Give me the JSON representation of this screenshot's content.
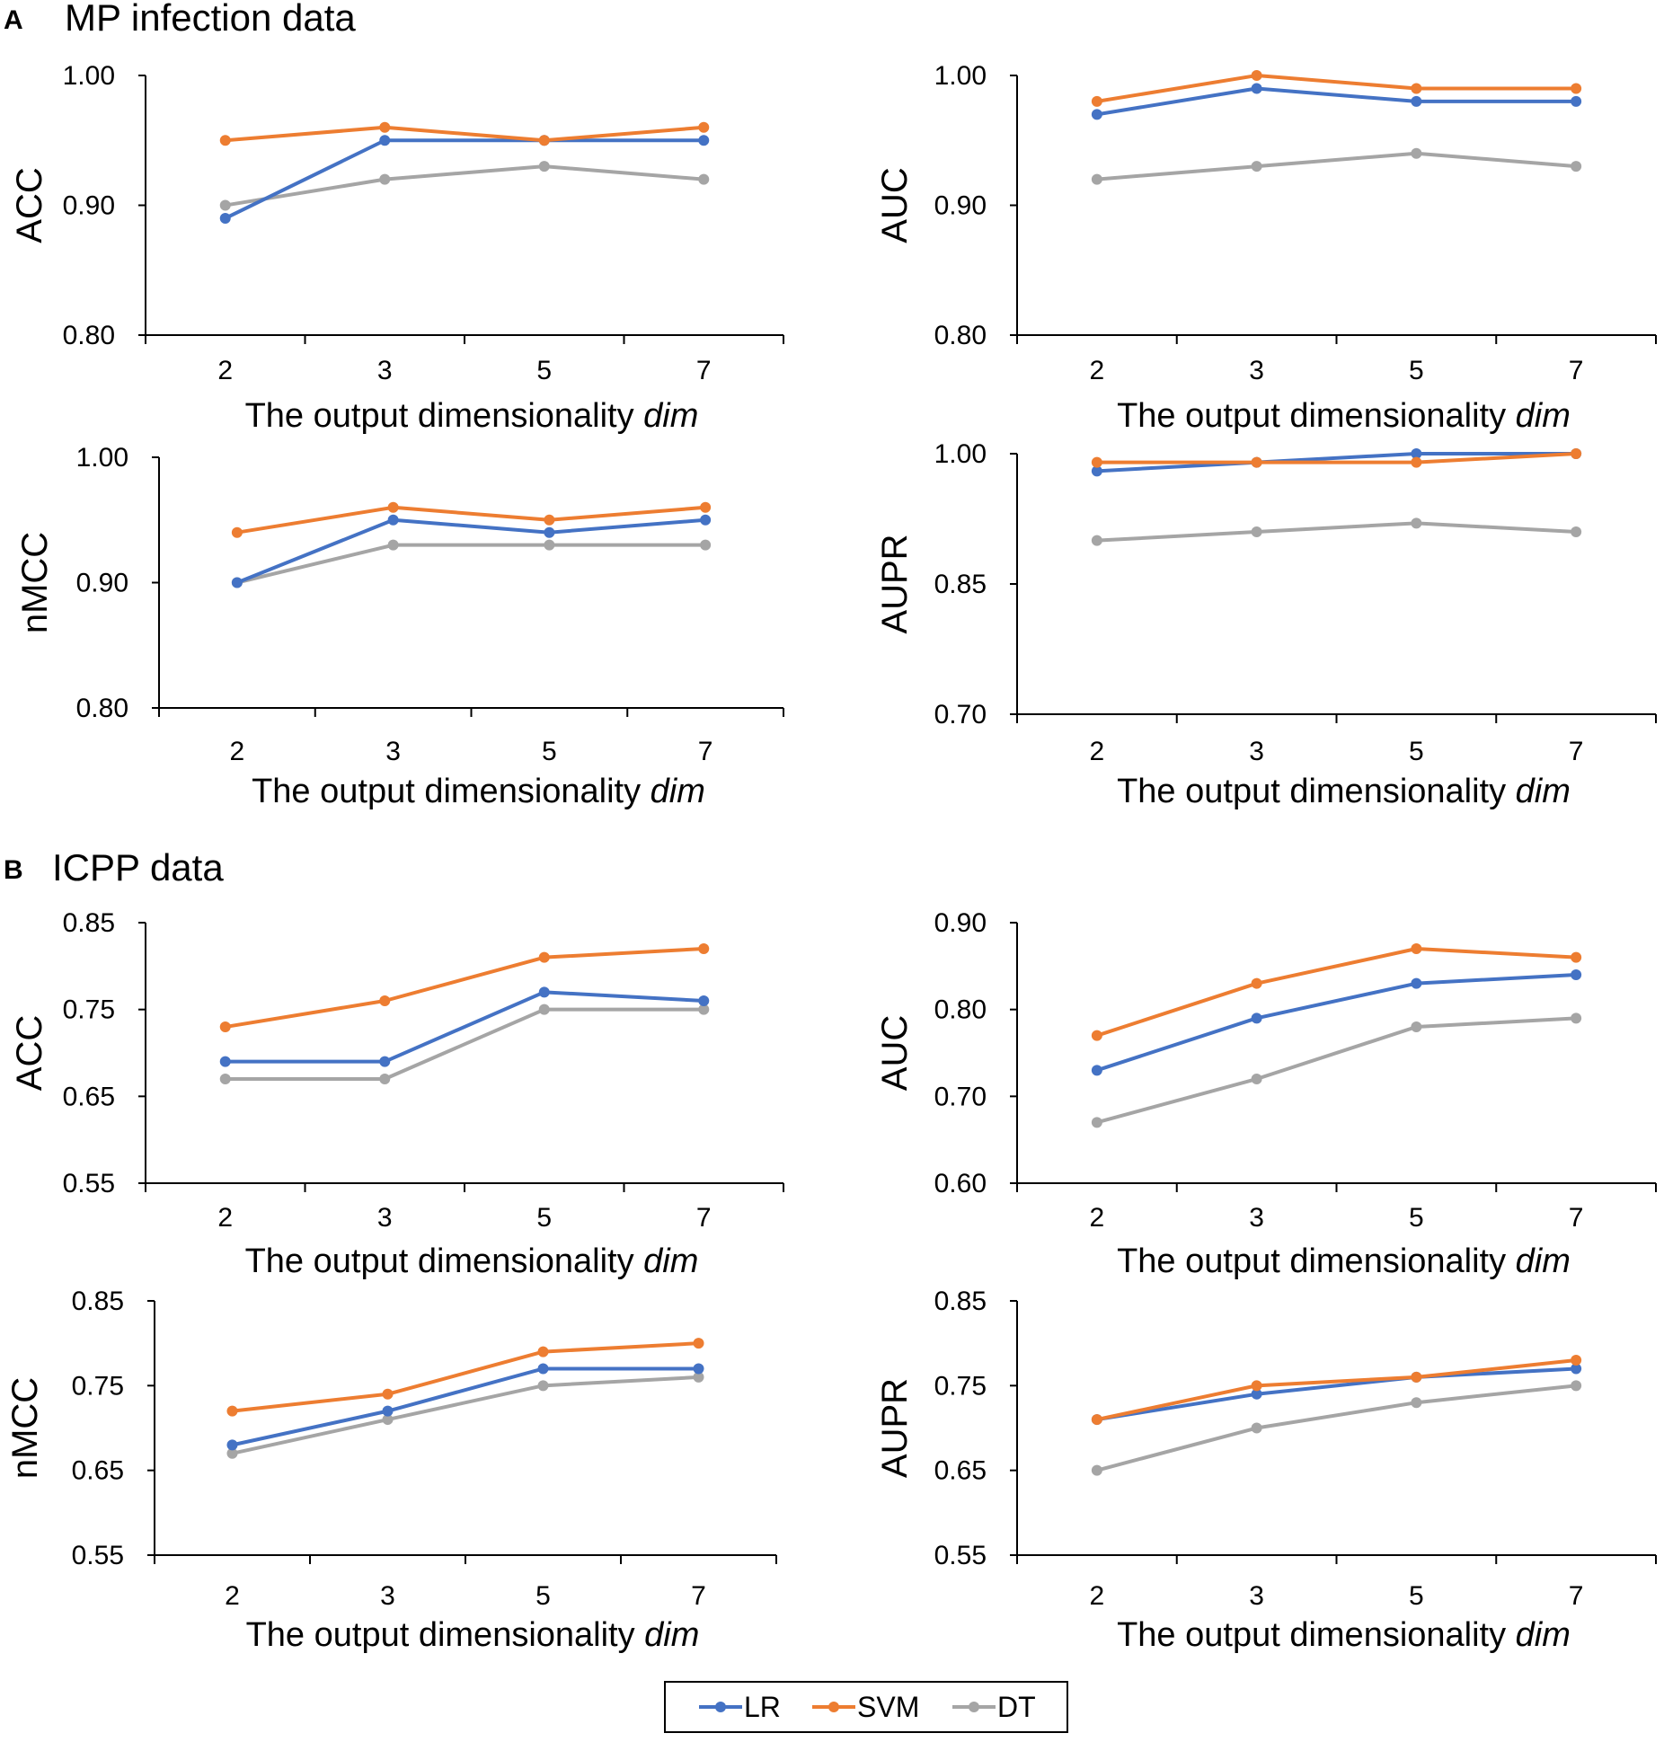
{
  "panels": [
    {
      "letter": "A",
      "title": "MP infection data"
    },
    {
      "letter": "B",
      "title": "ICPP data"
    }
  ],
  "colors": {
    "LR": "#4472C4",
    "SVM": "#ED7D31",
    "DT": "#A5A5A5",
    "axis": "#000000"
  },
  "legend": {
    "items": [
      "LR",
      "SVM",
      "DT"
    ]
  },
  "chart_data": [
    {
      "type": "line",
      "ylabel": "ACC",
      "xlabel": "The output dimensionality ",
      "xlabel_italic": "dim",
      "categories": [
        "2",
        "3",
        "5",
        "7"
      ],
      "ylim": [
        0.8,
        1.0
      ],
      "yticks": [
        "0.80",
        "0.90",
        "1.00"
      ],
      "series": [
        {
          "name": "LR",
          "values": [
            0.89,
            0.95,
            0.95,
            0.95
          ]
        },
        {
          "name": "SVM",
          "values": [
            0.95,
            0.96,
            0.95,
            0.96
          ]
        },
        {
          "name": "DT",
          "values": [
            0.9,
            0.92,
            0.93,
            0.92
          ]
        }
      ]
    },
    {
      "type": "line",
      "ylabel": "AUC",
      "xlabel": "The output dimensionality ",
      "xlabel_italic": "dim",
      "categories": [
        "2",
        "3",
        "5",
        "7"
      ],
      "ylim": [
        0.8,
        1.0
      ],
      "yticks": [
        "0.80",
        "0.90",
        "1.00"
      ],
      "series": [
        {
          "name": "LR",
          "values": [
            0.97,
            0.99,
            0.98,
            0.98
          ]
        },
        {
          "name": "SVM",
          "values": [
            0.98,
            1.0,
            0.99,
            0.99
          ]
        },
        {
          "name": "DT",
          "values": [
            0.92,
            0.93,
            0.94,
            0.93
          ]
        }
      ]
    },
    {
      "type": "line",
      "ylabel": "nMCC",
      "xlabel": "The output dimensionality ",
      "xlabel_italic": "dim",
      "categories": [
        "2",
        "3",
        "5",
        "7"
      ],
      "ylim": [
        0.8,
        1.0
      ],
      "yticks": [
        "0.80",
        "0.90",
        "1.00"
      ],
      "series": [
        {
          "name": "LR",
          "values": [
            0.9,
            0.95,
            0.94,
            0.95
          ]
        },
        {
          "name": "SVM",
          "values": [
            0.94,
            0.96,
            0.95,
            0.96
          ]
        },
        {
          "name": "DT",
          "values": [
            0.9,
            0.93,
            0.93,
            0.93
          ]
        }
      ]
    },
    {
      "type": "line",
      "ylabel": "AUPR",
      "xlabel": "The output dimensionality ",
      "xlabel_italic": "dim",
      "categories": [
        "2",
        "3",
        "5",
        "7"
      ],
      "ylim": [
        0.7,
        1.0
      ],
      "yticks": [
        "0.70",
        "0.85",
        "1.00"
      ],
      "series": [
        {
          "name": "LR",
          "values": [
            0.98,
            0.99,
            1.0,
            1.0
          ]
        },
        {
          "name": "SVM",
          "values": [
            0.99,
            0.99,
            0.99,
            1.0
          ]
        },
        {
          "name": "DT",
          "values": [
            0.9,
            0.91,
            0.92,
            0.91
          ]
        }
      ]
    },
    {
      "type": "line",
      "ylabel": "ACC",
      "xlabel": "The output dimensionality ",
      "xlabel_italic": "dim",
      "categories": [
        "2",
        "3",
        "5",
        "7"
      ],
      "ylim": [
        0.55,
        0.85
      ],
      "yticks": [
        "0.55",
        "0.65",
        "0.75",
        "0.85"
      ],
      "series": [
        {
          "name": "LR",
          "values": [
            0.69,
            0.69,
            0.77,
            0.76
          ]
        },
        {
          "name": "SVM",
          "values": [
            0.73,
            0.76,
            0.81,
            0.82
          ]
        },
        {
          "name": "DT",
          "values": [
            0.67,
            0.67,
            0.75,
            0.75
          ]
        }
      ]
    },
    {
      "type": "line",
      "ylabel": "AUC",
      "xlabel": "The output dimensionality ",
      "xlabel_italic": "dim",
      "categories": [
        "2",
        "3",
        "5",
        "7"
      ],
      "ylim": [
        0.6,
        0.9
      ],
      "yticks": [
        "0.60",
        "0.70",
        "0.80",
        "0.90"
      ],
      "series": [
        {
          "name": "LR",
          "values": [
            0.73,
            0.79,
            0.83,
            0.84
          ]
        },
        {
          "name": "SVM",
          "values": [
            0.77,
            0.83,
            0.87,
            0.86
          ]
        },
        {
          "name": "DT",
          "values": [
            0.67,
            0.72,
            0.78,
            0.79
          ]
        }
      ]
    },
    {
      "type": "line",
      "ylabel": "nMCC",
      "xlabel": "The output dimensionality ",
      "xlabel_italic": "dim",
      "categories": [
        "2",
        "3",
        "5",
        "7"
      ],
      "ylim": [
        0.55,
        0.85
      ],
      "yticks": [
        "0.55",
        "0.65",
        "0.75",
        "0.85"
      ],
      "series": [
        {
          "name": "LR",
          "values": [
            0.68,
            0.72,
            0.77,
            0.77
          ]
        },
        {
          "name": "SVM",
          "values": [
            0.72,
            0.74,
            0.79,
            0.8
          ]
        },
        {
          "name": "DT",
          "values": [
            0.67,
            0.71,
            0.75,
            0.76
          ]
        }
      ]
    },
    {
      "type": "line",
      "ylabel": "AUPR",
      "xlabel": "The output dimensionality ",
      "xlabel_italic": "dim",
      "categories": [
        "2",
        "3",
        "5",
        "7"
      ],
      "ylim": [
        0.55,
        0.85
      ],
      "yticks": [
        "0.55",
        "0.65",
        "0.75",
        "0.85"
      ],
      "series": [
        {
          "name": "LR",
          "values": [
            0.71,
            0.74,
            0.76,
            0.77
          ]
        },
        {
          "name": "SVM",
          "values": [
            0.71,
            0.75,
            0.76,
            0.78
          ]
        },
        {
          "name": "DT",
          "values": [
            0.65,
            0.7,
            0.73,
            0.75
          ]
        }
      ]
    }
  ]
}
